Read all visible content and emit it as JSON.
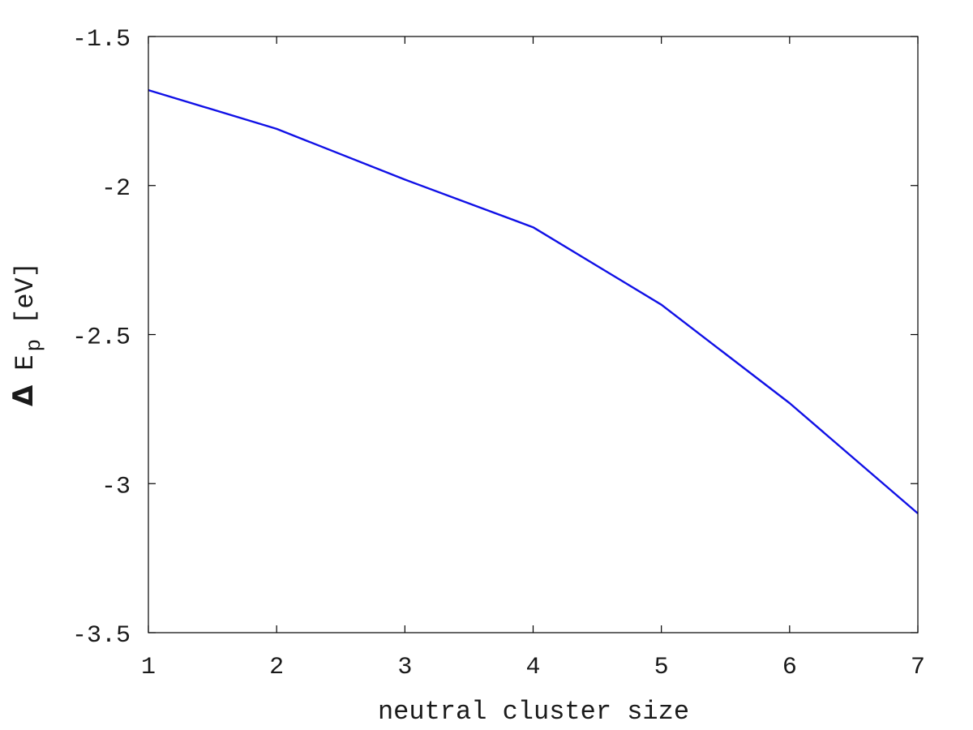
{
  "chart_data": {
    "type": "line",
    "title": "",
    "xlabel": "neutral cluster size",
    "ylabel": {
      "symbol": "Δ",
      "main": "E",
      "subscript": "p",
      "unit": "[eV]"
    },
    "xlim": [
      1,
      7
    ],
    "ylim": [
      -3.5,
      -1.5
    ],
    "grid": false,
    "x_ticks": [
      {
        "value": 1,
        "label": "1"
      },
      {
        "value": 2,
        "label": "2"
      },
      {
        "value": 3,
        "label": "3"
      },
      {
        "value": 4,
        "label": "4"
      },
      {
        "value": 5,
        "label": "5"
      },
      {
        "value": 6,
        "label": "6"
      },
      {
        "value": 7,
        "label": "7"
      }
    ],
    "y_ticks": [
      {
        "value": -1.5,
        "label": "-1.5"
      },
      {
        "value": -2,
        "label": "-2"
      },
      {
        "value": -2.5,
        "label": "-2.5"
      },
      {
        "value": -3,
        "label": "-3"
      },
      {
        "value": -3.5,
        "label": "-3.5"
      }
    ],
    "series": [
      {
        "name": "ΔEp",
        "color": "#1010e6",
        "x": [
          1,
          2,
          3,
          4,
          5,
          6,
          7
        ],
        "y": [
          -1.68,
          -1.81,
          -1.98,
          -2.14,
          -2.4,
          -2.73,
          -3.1
        ]
      }
    ]
  }
}
